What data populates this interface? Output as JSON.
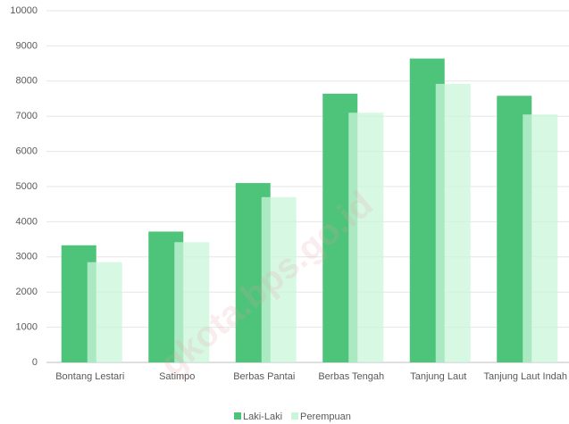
{
  "chart_data": {
    "type": "bar",
    "categories": [
      "Bontang Lestari",
      "Satimpo",
      "Berbas Pantai",
      "Berbas Tengah",
      "Tanjung Laut",
      "Tanjung Laut Indah"
    ],
    "series": [
      {
        "name": "Laki-Laki",
        "color": "#4dc47a",
        "values": [
          3330,
          3720,
          5100,
          7640,
          8640,
          7580
        ]
      },
      {
        "name": "Perempuan",
        "color": "#c9f6da",
        "values": [
          2850,
          3420,
          4700,
          7100,
          7920,
          7050
        ]
      }
    ],
    "ylim": [
      0,
      10000
    ],
    "yticks": [
      0,
      1000,
      2000,
      3000,
      4000,
      5000,
      6000,
      7000,
      8000,
      9000,
      10000
    ],
    "grid": true,
    "legend": "bottom",
    "watermark": "gkota.bps.go.id"
  }
}
